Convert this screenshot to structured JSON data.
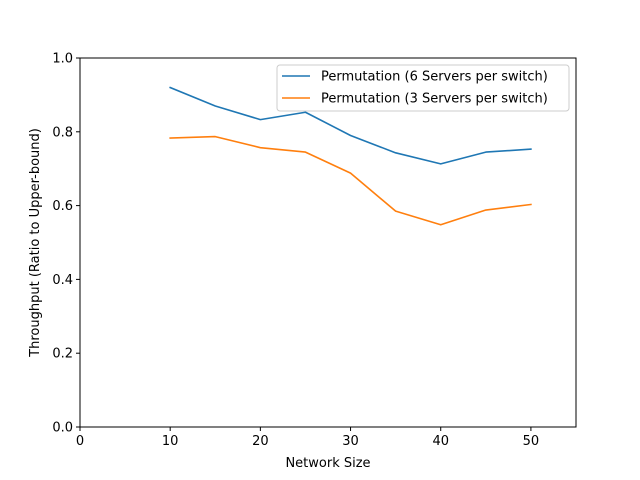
{
  "chart_data": {
    "type": "line",
    "title": "",
    "xlabel": "Network Size",
    "ylabel": "Throughput (Ratio to Upper-bound)",
    "xlim": [
      0,
      55
    ],
    "ylim": [
      0.0,
      1.0
    ],
    "xticks": [
      0,
      10,
      20,
      30,
      40,
      50
    ],
    "xtick_labels": [
      "0",
      "10",
      "20",
      "30",
      "40",
      "50"
    ],
    "yticks": [
      0.0,
      0.2,
      0.4,
      0.6,
      0.8,
      1.0
    ],
    "ytick_labels": [
      "0.0",
      "0.2",
      "0.4",
      "0.6",
      "0.8",
      "1.0"
    ],
    "grid": false,
    "legend_position": "top-right",
    "x": [
      10,
      15,
      20,
      25,
      30,
      35,
      40,
      45,
      50
    ],
    "series": [
      {
        "name": "Permutation (6 Servers per switch)",
        "color": "#1f77b4",
        "values": [
          0.92,
          0.87,
          0.833,
          0.853,
          0.79,
          0.743,
          0.713,
          0.745,
          0.753
        ]
      },
      {
        "name": "Permutation (3 Servers per switch)",
        "color": "#ff7f0e",
        "values": [
          0.783,
          0.787,
          0.757,
          0.745,
          0.688,
          0.585,
          0.548,
          0.588,
          0.603
        ]
      }
    ]
  }
}
